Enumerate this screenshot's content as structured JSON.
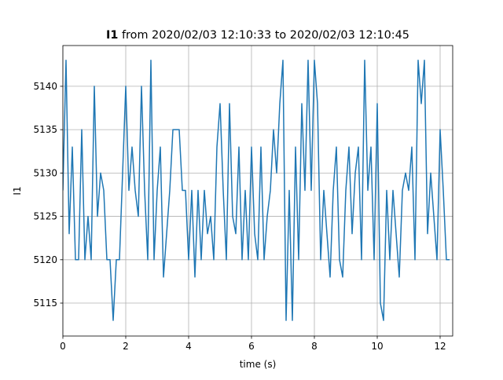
{
  "chart_data": {
    "type": "line",
    "title": {
      "bold": "I1",
      "text": "from 2020/02/03 12:10:33 to 2020/02/03 12:10:45"
    },
    "xlabel": "time (s)",
    "ylabel": "I1",
    "xlim": [
      0,
      12.4
    ],
    "ylim": [
      5111.2,
      5144.7
    ],
    "xticks": [
      0,
      2,
      4,
      6,
      8,
      10,
      12
    ],
    "yticks": [
      5115,
      5120,
      5125,
      5130,
      5135,
      5140
    ],
    "grid": true,
    "x": [
      0,
      0.1,
      0.2,
      0.3,
      0.4,
      0.5,
      0.6,
      0.7,
      0.8,
      0.9,
      1,
      1.1,
      1.2,
      1.3,
      1.4,
      1.5,
      1.6,
      1.7,
      1.8,
      1.9,
      2,
      2.1,
      2.2,
      2.3,
      2.4,
      2.5,
      2.6,
      2.7,
      2.8,
      2.9,
      3,
      3.1,
      3.2,
      3.3,
      3.4,
      3.5,
      3.6,
      3.7,
      3.8,
      3.9,
      4,
      4.1,
      4.2,
      4.3,
      4.4,
      4.5,
      4.6,
      4.7,
      4.8,
      4.9,
      5,
      5.1,
      5.2,
      5.3,
      5.4,
      5.5,
      5.6,
      5.7,
      5.8,
      5.9,
      6,
      6.1,
      6.2,
      6.3,
      6.4,
      6.5,
      6.6,
      6.7,
      6.8,
      6.9,
      7,
      7.1,
      7.2,
      7.3,
      7.4,
      7.5,
      7.6,
      7.7,
      7.8,
      7.9,
      8,
      8.1,
      8.2,
      8.3,
      8.4,
      8.5,
      8.6,
      8.7,
      8.8,
      8.9,
      9,
      9.1,
      9.2,
      9.3,
      9.4,
      9.5,
      9.6,
      9.7,
      9.8,
      9.9,
      10,
      10.1,
      10.2,
      10.3,
      10.4,
      10.5,
      10.6,
      10.7,
      10.8,
      10.9,
      11,
      11.1,
      11.2,
      11.3,
      11.4,
      11.5,
      11.6,
      11.7,
      11.8,
      11.9,
      12,
      12.1,
      12.2,
      12.3
    ],
    "series": [
      {
        "name": "I1",
        "color": "#1f77b4",
        "values": [
          5128,
          5143,
          5123,
          5133,
          5120,
          5120,
          5135,
          5120,
          5125,
          5120,
          5140,
          5125,
          5130,
          5128,
          5120,
          5120,
          5113,
          5120,
          5120,
          5130,
          5140,
          5128,
          5133,
          5128,
          5125,
          5140,
          5128,
          5120,
          5143,
          5120,
          5128,
          5133,
          5118,
          5123,
          5128,
          5135,
          5135,
          5135,
          5128,
          5128,
          5120,
          5128,
          5118,
          5128,
          5120,
          5128,
          5123,
          5125,
          5120,
          5133,
          5138,
          5128,
          5120,
          5138,
          5125,
          5123,
          5133,
          5120,
          5128,
          5120,
          5133,
          5123,
          5120,
          5133,
          5120,
          5125,
          5128,
          5135,
          5130,
          5138,
          5143,
          5113,
          5128,
          5113,
          5133,
          5120,
          5138,
          5128,
          5143,
          5128,
          5143,
          5138,
          5120,
          5128,
          5123,
          5118,
          5128,
          5133,
          5120,
          5118,
          5128,
          5133,
          5123,
          5130,
          5133,
          5120,
          5143,
          5128,
          5133,
          5120,
          5138,
          5115,
          5113,
          5128,
          5120,
          5128,
          5123,
          5118,
          5128,
          5130,
          5128,
          5133,
          5120,
          5143,
          5138,
          5143,
          5123,
          5130,
          5125,
          5120,
          5135,
          5128,
          5120,
          5120
        ]
      }
    ]
  }
}
